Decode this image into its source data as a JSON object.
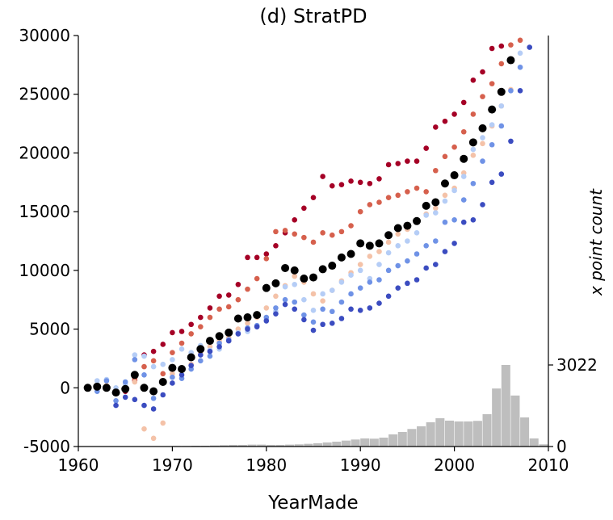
{
  "chart_data": {
    "type": "scatter",
    "title": "(d) StratPD",
    "x_label": "YearMade",
    "y2_label": "x point count",
    "x": [
      1961,
      1962,
      1963,
      1964,
      1965,
      1966,
      1967,
      1968,
      1969,
      1970,
      1971,
      1972,
      1973,
      1974,
      1975,
      1976,
      1977,
      1978,
      1979,
      1980,
      1981,
      1982,
      1983,
      1984,
      1985,
      1986,
      1987,
      1988,
      1989,
      1990,
      1991,
      1992,
      1993,
      1994,
      1995,
      1996,
      1997,
      1998,
      1999,
      2000,
      2001,
      2002,
      2003,
      2004,
      2005,
      2006,
      2007,
      2008
    ],
    "series": [
      {
        "color": "#a50026",
        "values": [
          0,
          200,
          0,
          -500,
          -300,
          600,
          2800,
          3100,
          3700,
          4700,
          4800,
          5400,
          6000,
          6800,
          7800,
          7900,
          8800,
          11100,
          11100,
          11400,
          12100,
          13200,
          14300,
          15300,
          16200,
          18000,
          17200,
          17300,
          17600,
          17500,
          17400,
          17800,
          19000,
          19100,
          19300,
          19300,
          20400,
          22200,
          22700,
          23300,
          24300,
          26200,
          26900,
          28900,
          29100,
          null,
          null,
          null
        ]
      },
      {
        "color": "#d6604d",
        "values": [
          0,
          100,
          100,
          -300,
          0,
          800,
          1800,
          2300,
          1200,
          3000,
          3800,
          4600,
          5200,
          6000,
          6700,
          6900,
          7500,
          8400,
          9300,
          11000,
          13300,
          13400,
          13100,
          12800,
          12400,
          13200,
          13000,
          13300,
          13800,
          15000,
          15600,
          15800,
          16200,
          16400,
          16700,
          17000,
          16700,
          18500,
          19700,
          20500,
          21800,
          23300,
          24800,
          25900,
          27600,
          29200,
          29600,
          null
        ]
      },
      {
        "color": "#f4c2a8",
        "values": [
          0,
          50,
          200,
          -200,
          0,
          500,
          -3500,
          -4300,
          -3000,
          1200,
          1500,
          2000,
          3000,
          3500,
          4000,
          4300,
          5000,
          5500,
          6000,
          6800,
          7800,
          8700,
          9500,
          9000,
          8000,
          7400,
          8300,
          9100,
          9800,
          10500,
          11200,
          11600,
          12400,
          13100,
          13500,
          14200,
          14800,
          15300,
          16400,
          17000,
          18300,
          19800,
          20800,
          22300,
          24000,
          25400,
          null,
          null
        ]
      },
      {
        "color": "#b5cdf6",
        "values": [
          100,
          600,
          700,
          0,
          300,
          2800,
          2700,
          1800,
          2000,
          2400,
          3300,
          3000,
          3600,
          3200,
          3300,
          4000,
          4700,
          4800,
          5200,
          5800,
          6500,
          8600,
          8800,
          7500,
          6600,
          8000,
          8300,
          9000,
          9600,
          10000,
          9300,
          10500,
          11500,
          12100,
          12500,
          13200,
          14700,
          14900,
          15900,
          16800,
          18000,
          20300,
          21300,
          22400,
          24000,
          27900,
          28500,
          null
        ]
      },
      {
        "color": "#6f92e6",
        "values": [
          0,
          -300,
          600,
          -1100,
          500,
          2400,
          1100,
          -900,
          600,
          900,
          800,
          1600,
          2300,
          2700,
          3800,
          4100,
          4600,
          5100,
          5300,
          6000,
          6800,
          7500,
          7300,
          6200,
          5600,
          6700,
          6500,
          7300,
          8000,
          8500,
          9000,
          9200,
          10000,
          10400,
          10800,
          11400,
          12100,
          12500,
          14100,
          14300,
          16000,
          17400,
          19300,
          20700,
          22300,
          25300,
          27300,
          null
        ]
      },
      {
        "color": "#3b4cc0",
        "values": [
          0,
          0,
          100,
          -1500,
          -800,
          -1000,
          -1500,
          -1800,
          -600,
          400,
          1100,
          1900,
          2800,
          3100,
          3500,
          4000,
          4600,
          5000,
          5200,
          5700,
          6300,
          7100,
          6700,
          5800,
          4900,
          5400,
          5500,
          5900,
          6700,
          6600,
          6800,
          7200,
          7800,
          8500,
          8900,
          9200,
          10200,
          10500,
          11600,
          12300,
          14100,
          14300,
          15600,
          17500,
          18200,
          21000,
          25300,
          29000
        ]
      },
      {
        "color": "#000000",
        "values": [
          0,
          100,
          0,
          -400,
          -100,
          1100,
          0,
          -300,
          500,
          1700,
          1600,
          2600,
          3300,
          4000,
          4400,
          4700,
          5900,
          6000,
          6200,
          8500,
          8900,
          10200,
          10000,
          9300,
          9400,
          10100,
          10400,
          11100,
          11400,
          12300,
          12100,
          12300,
          13000,
          13600,
          13800,
          14200,
          15500,
          15800,
          17400,
          18100,
          19500,
          20900,
          22100,
          23700,
          25200,
          27900,
          null,
          null
        ]
      }
    ],
    "histogram": {
      "color": "#bebebe",
      "axis": "y2",
      "bins": [
        1960,
        1961,
        1962,
        1963,
        1964,
        1965,
        1966,
        1967,
        1968,
        1969,
        1970,
        1971,
        1972,
        1973,
        1974,
        1975,
        1976,
        1977,
        1978,
        1979,
        1980,
        1981,
        1982,
        1983,
        1984,
        1985,
        1986,
        1987,
        1988,
        1989,
        1990,
        1991,
        1992,
        1993,
        1994,
        1995,
        1996,
        1997,
        1998,
        1999,
        2000,
        2001,
        2002,
        2003,
        2004,
        2005,
        2006,
        2007,
        2008,
        2009,
        2010
      ],
      "counts": [
        0,
        0,
        0,
        0,
        0,
        0,
        0,
        0,
        0,
        0,
        20,
        20,
        30,
        30,
        40,
        50,
        60,
        60,
        70,
        70,
        60,
        60,
        70,
        80,
        100,
        120,
        150,
        180,
        220,
        260,
        300,
        290,
        330,
        450,
        540,
        650,
        750,
        900,
        1050,
        960,
        930,
        930,
        950,
        1200,
        2150,
        3022,
        1890,
        1080,
        300,
        80
      ]
    },
    "xlim": [
      1960,
      2010
    ],
    "xticks": [
      1960,
      1970,
      1980,
      1990,
      2000,
      2010
    ],
    "ylim": [
      -5000,
      30000
    ],
    "yticks": [
      -5000,
      0,
      5000,
      10000,
      15000,
      20000,
      25000,
      30000
    ],
    "y2lim": [
      0,
      15230
    ],
    "y2ticks": [
      0,
      3022
    ]
  }
}
